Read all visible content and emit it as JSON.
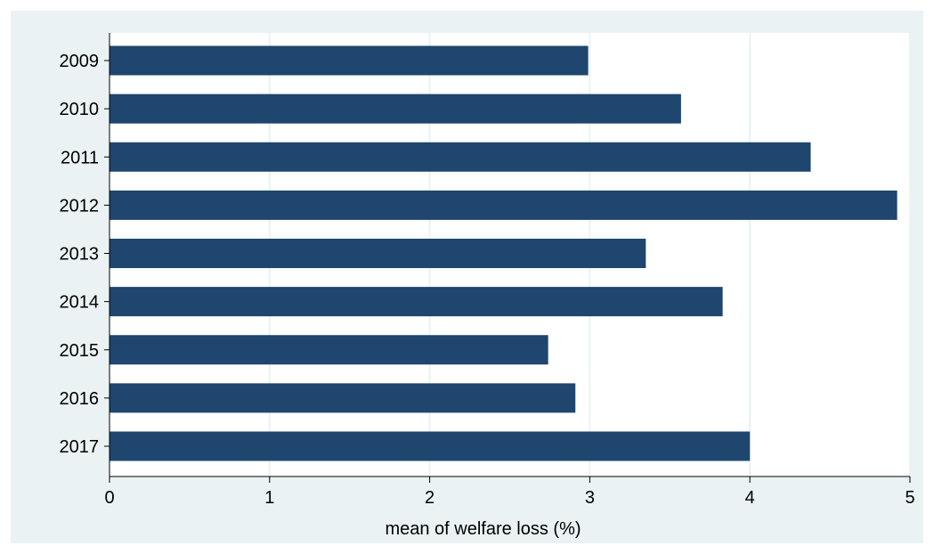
{
  "chart_data": {
    "type": "bar",
    "orientation": "horizontal",
    "categories": [
      "2009",
      "2010",
      "2011",
      "2012",
      "2013",
      "2014",
      "2015",
      "2016",
      "2017"
    ],
    "values": [
      2.99,
      3.57,
      4.38,
      4.92,
      3.35,
      3.83,
      2.74,
      2.91,
      4.0
    ],
    "title": "",
    "xlabel": "mean of welfare loss (%)",
    "ylabel": "",
    "xlim": [
      0,
      5
    ],
    "xticks": [
      "0",
      "1",
      "2",
      "3",
      "4",
      "5"
    ],
    "grid": "vertical",
    "legend": "none",
    "colors": {
      "bar": "#1e466e",
      "plot_background": "#ffffff",
      "outer_background": "#eaf2f3",
      "grid": "#eaf2f3"
    }
  }
}
